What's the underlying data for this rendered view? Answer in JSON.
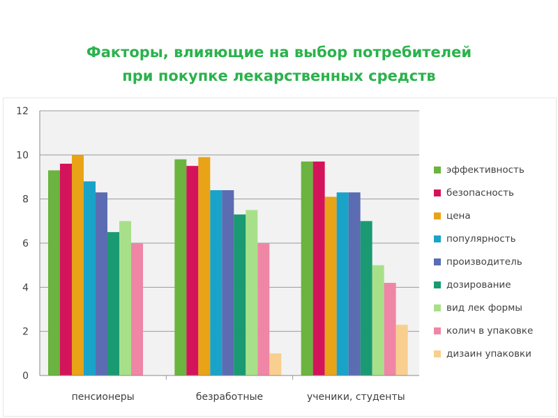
{
  "title": {
    "line1": "Факторы, влияющие на выбор потребителей",
    "line2": "при покупке лекарственных средств"
  },
  "chart_data": {
    "type": "bar",
    "title": "Факторы, влияющие на выбор потребителей при покупке лекарственных средств",
    "xlabel": "",
    "ylabel": "",
    "categories": [
      "пенсионеры",
      "безработные",
      "ученики, студенты"
    ],
    "ylim": [
      0,
      12
    ],
    "yticks": [
      0,
      2,
      4,
      6,
      8,
      10,
      12
    ],
    "grid": true,
    "legend_position": "right",
    "series": [
      {
        "name": "эффективность",
        "color": "#6ab43f",
        "values": [
          9.3,
          9.8,
          9.7
        ]
      },
      {
        "name": "безопасность",
        "color": "#d4145a",
        "values": [
          9.6,
          9.5,
          9.7
        ]
      },
      {
        "name": "цена",
        "color": "#e8a317",
        "values": [
          10.0,
          9.9,
          8.1
        ]
      },
      {
        "name": "популярность",
        "color": "#1aa3c9",
        "values": [
          8.8,
          8.4,
          8.3
        ]
      },
      {
        "name": "производитель",
        "color": "#5b6cb2",
        "values": [
          8.3,
          8.4,
          8.3
        ]
      },
      {
        "name": "дозирование",
        "color": "#1a9a72",
        "values": [
          6.5,
          7.3,
          7.0
        ]
      },
      {
        "name": "вид лек формы",
        "color": "#a8e08a",
        "values": [
          7.0,
          7.5,
          5.0
        ]
      },
      {
        "name": "колич в упаковке",
        "color": "#ef86a6",
        "values": [
          6.0,
          6.0,
          4.2
        ]
      },
      {
        "name": "дизаин упаковки",
        "color": "#f8cf8e",
        "values": [
          0,
          1.0,
          2.3
        ]
      }
    ]
  }
}
